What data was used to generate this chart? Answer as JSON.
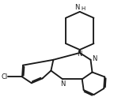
{
  "bg_color": "#ffffff",
  "line_color": "#1a1a1a",
  "lw": 1.35,
  "fs": 6.0,
  "figsize": [
    1.44,
    1.28
  ],
  "dpi": 100,
  "xlim": [
    0,
    144
  ],
  "ylim": [
    0,
    128
  ]
}
